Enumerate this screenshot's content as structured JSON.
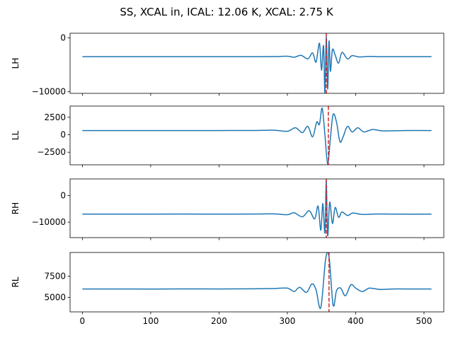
{
  "figure": {
    "title": "SS, XCAL in, ICAL: 12.06 K, XCAL: 2.75 K",
    "line_color": "#1f77b4",
    "marker_color": "#d62728"
  },
  "chart_data": [
    {
      "type": "line",
      "ylabel": "LH",
      "xlim": [
        -18,
        529
      ],
      "ylim": [
        -10300,
        850
      ],
      "yticks": [
        0,
        -10000
      ],
      "ytick_labels": [
        "0",
        "−10000"
      ],
      "xticks": [
        0,
        100,
        200,
        300,
        400,
        500
      ],
      "xtick_labels": [],
      "vline_x": 357,
      "series": [
        {
          "x": [
            0,
            50,
            100,
            150,
            200,
            250,
            280,
            300,
            310,
            320,
            330,
            337,
            342,
            347,
            350,
            353,
            355,
            357,
            359,
            361,
            363,
            366,
            370,
            375,
            380,
            388,
            395,
            405,
            420,
            440,
            470,
            511
          ],
          "y": [
            -3500,
            -3500,
            -3500,
            -3500,
            -3500,
            -3490,
            -3470,
            -3420,
            -3600,
            -3250,
            -3900,
            -2800,
            -4500,
            -1000,
            -6000,
            -1500,
            -10200,
            200,
            -9500,
            -600,
            -6200,
            -2200,
            -3200,
            -4700,
            -2700,
            -3900,
            -3300,
            -3550,
            -3450,
            -3500,
            -3500,
            -3500
          ]
        }
      ]
    },
    {
      "type": "line",
      "ylabel": "LL",
      "xlim": [
        -18,
        529
      ],
      "ylim": [
        -4300,
        4100
      ],
      "yticks": [
        2500,
        0,
        -2500
      ],
      "ytick_labels": [
        "2500",
        "0",
        "−2500"
      ],
      "xticks": [
        0,
        100,
        200,
        300,
        400,
        500
      ],
      "xtick_labels": [],
      "vline_x": 360,
      "series": [
        {
          "x": [
            0,
            50,
            100,
            150,
            200,
            250,
            280,
            300,
            312,
            322,
            330,
            337,
            343,
            347,
            351,
            355,
            359,
            363,
            367,
            372,
            377,
            382,
            388,
            395,
            403,
            412,
            425,
            440,
            470,
            511
          ],
          "y": [
            600,
            600,
            600,
            590,
            600,
            610,
            650,
            500,
            1000,
            300,
            1200,
            -300,
            1800,
            1500,
            3800,
            0,
            -4200,
            -500,
            2900,
            1800,
            -1000,
            -200,
            1200,
            400,
            1000,
            400,
            750,
            550,
            600,
            600
          ]
        }
      ]
    },
    {
      "type": "line",
      "ylabel": "RH",
      "xlim": [
        -18,
        529
      ],
      "ylim": [
        -15800,
        6200
      ],
      "yticks": [
        0,
        -10000
      ],
      "ytick_labels": [
        "0",
        "−10000"
      ],
      "xticks": [
        0,
        100,
        200,
        300,
        400,
        500
      ],
      "xtick_labels": [],
      "vline_x": 357,
      "series": [
        {
          "x": [
            0,
            50,
            100,
            150,
            200,
            250,
            280,
            300,
            310,
            322,
            332,
            340,
            345,
            349,
            352,
            355,
            357,
            359,
            362,
            366,
            370,
            375,
            380,
            388,
            396,
            410,
            430,
            460,
            511
          ],
          "y": [
            -7000,
            -7000,
            -7000,
            -6950,
            -7000,
            -6950,
            -6900,
            -7200,
            -6500,
            -8000,
            -5700,
            -8800,
            -4000,
            -13000,
            -3000,
            -14000,
            5500,
            -15000,
            -2500,
            -10500,
            -4500,
            -8200,
            -6200,
            -7500,
            -6600,
            -7100,
            -6950,
            -7000,
            -7000
          ]
        }
      ]
    },
    {
      "type": "line",
      "ylabel": "RL",
      "xlim": [
        -18,
        529
      ],
      "ylim": [
        3300,
        10300
      ],
      "yticks": [
        7500,
        5000
      ],
      "ytick_labels": [
        "7500",
        "5000"
      ],
      "xticks": [
        0,
        100,
        200,
        300,
        400,
        500
      ],
      "xtick_labels": [
        "0",
        "100",
        "200",
        "300",
        "400",
        "500"
      ],
      "vline_x": 361,
      "series": [
        {
          "x": [
            0,
            50,
            100,
            150,
            200,
            250,
            280,
            300,
            310,
            318,
            328,
            336,
            342,
            349,
            356,
            361,
            367,
            372,
            378,
            385,
            393,
            400,
            410,
            420,
            435,
            455,
            480,
            511
          ],
          "y": [
            6000,
            6000,
            5990,
            6010,
            6000,
            6020,
            6050,
            6100,
            5700,
            6200,
            5600,
            6600,
            5900,
            3800,
            9500,
            9800,
            4100,
            5800,
            6100,
            5200,
            6500,
            6100,
            5700,
            6100,
            5950,
            6000,
            6000,
            6000
          ]
        }
      ]
    }
  ]
}
